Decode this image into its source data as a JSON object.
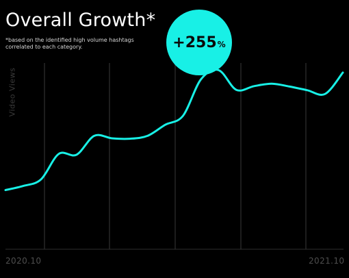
{
  "chart_data": {
    "type": "line",
    "title": "Overall Growth*",
    "subtitle": "*based on the identified high volume hashtags correlated to each category.",
    "ylabel": "Video Views",
    "x_start_label": "2020.10",
    "x_end_label": "2021.10",
    "annotation": {
      "value": "+255",
      "unit": "%"
    },
    "grid": "vertical",
    "color": "#18f0e6",
    "series": [
      {
        "values": [
          0.04,
          0.14,
          0.3,
          0.92,
          0.9,
          1.36,
          1.3,
          1.29,
          1.36,
          1.63,
          1.85,
          2.73,
          2.96,
          2.48,
          2.57,
          2.63,
          2.56,
          2.47,
          2.38,
          2.9
        ]
      }
    ]
  }
}
